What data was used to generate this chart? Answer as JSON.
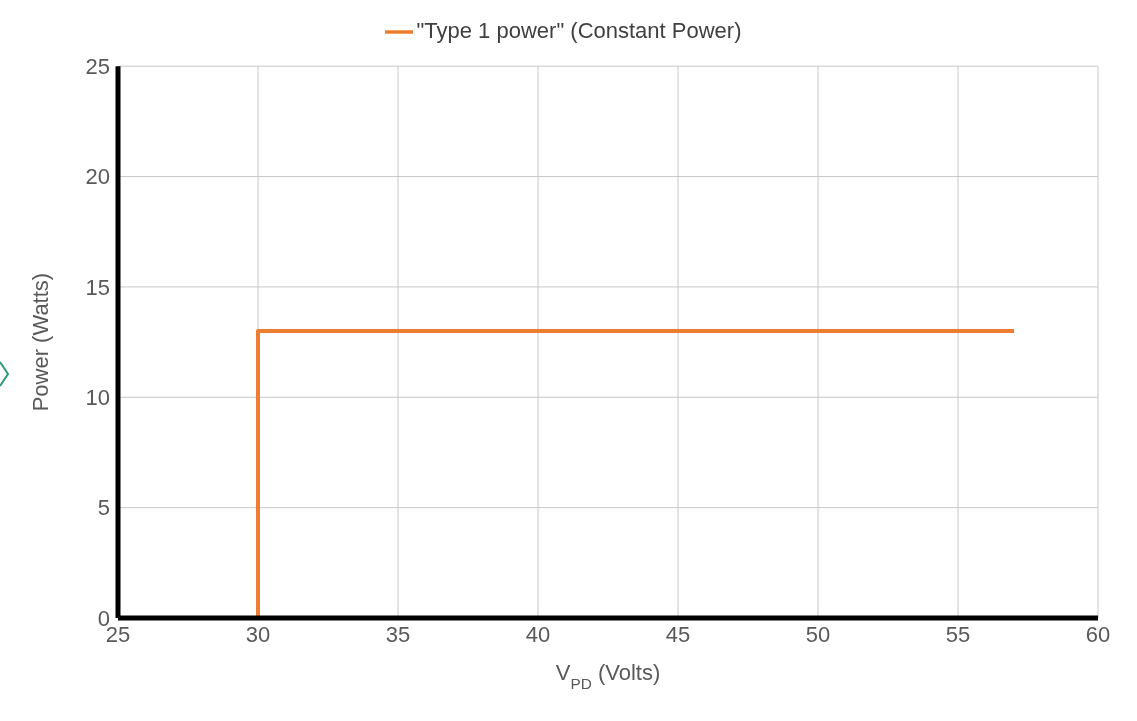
{
  "chart_data": {
    "type": "line",
    "xlabel": "V$_{PD}$ (Volts)",
    "ylabel": "Power (Watts)",
    "x": [
      25,
      30,
      30,
      57
    ],
    "series": [
      {
        "name": "\"Type 1 power\" (Constant Power)",
        "color": "#ed7d31",
        "values": [
          0,
          0,
          13,
          13
        ]
      }
    ],
    "xlim": [
      25,
      60
    ],
    "xticks": [
      25,
      30,
      35,
      40,
      45,
      50,
      55,
      60
    ],
    "ylim": [
      0,
      25
    ],
    "yticks": [
      0,
      5,
      10,
      15,
      20,
      25
    ],
    "grid": true,
    "legend": "top",
    "marker": "none",
    "line_style": "solid"
  }
}
